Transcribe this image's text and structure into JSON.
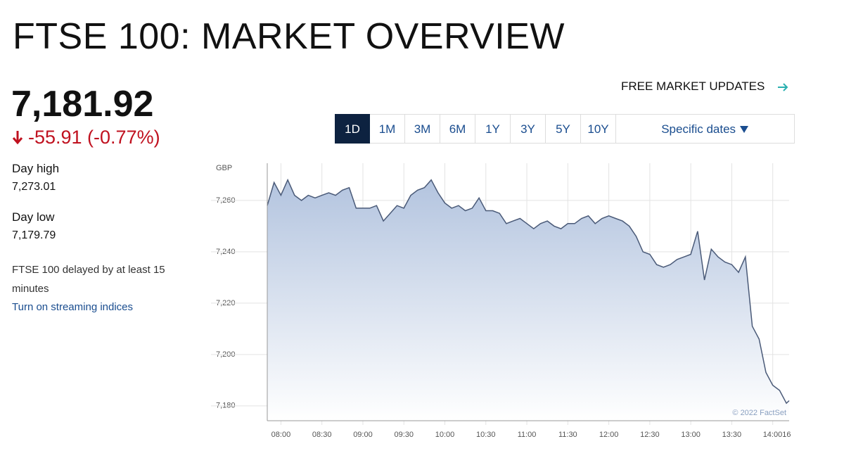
{
  "header": {
    "title": "FTSE 100: MARKET OVERVIEW",
    "price": "7,181.92",
    "change": "-55.91 (-0.77%)",
    "day_high_label": "Day high",
    "day_high": "7,273.01",
    "day_low_label": "Day low",
    "day_low": "7,179.79",
    "delay_note": "FTSE 100 delayed by at least 15 minutes",
    "streaming_link": "Turn on streaming indices",
    "updates_link": "FREE MARKET UPDATES"
  },
  "ranges": {
    "options": [
      "1D",
      "1M",
      "3M",
      "6M",
      "1Y",
      "3Y",
      "5Y",
      "10Y"
    ],
    "selected": "1D",
    "specific_dates": "Specific dates"
  },
  "chart_data": {
    "type": "line",
    "y_unit": "GBP",
    "credit": "© 2022 FactSet",
    "color": "#4a5a78",
    "x": [
      "07:50",
      "07:55",
      "08:00",
      "08:05",
      "08:10",
      "08:15",
      "08:20",
      "08:25",
      "08:30",
      "08:35",
      "08:40",
      "08:45",
      "08:50",
      "08:55",
      "09:00",
      "09:05",
      "09:10",
      "09:15",
      "09:20",
      "09:25",
      "09:30",
      "09:35",
      "09:40",
      "09:45",
      "09:50",
      "09:55",
      "10:00",
      "10:05",
      "10:10",
      "10:15",
      "10:20",
      "10:25",
      "10:30",
      "10:35",
      "10:40",
      "10:45",
      "10:50",
      "10:55",
      "11:00",
      "11:05",
      "11:10",
      "11:15",
      "11:20",
      "11:25",
      "11:30",
      "11:35",
      "11:40",
      "11:45",
      "11:50",
      "11:55",
      "12:00",
      "12:05",
      "12:10",
      "12:15",
      "12:20",
      "12:25",
      "12:30",
      "12:35",
      "12:40",
      "12:45",
      "12:50",
      "12:55",
      "13:00",
      "13:05",
      "13:10",
      "13:15",
      "13:20",
      "13:25",
      "13:30",
      "13:35",
      "13:40",
      "13:45",
      "13:50",
      "13:55",
      "14:00",
      "14:05",
      "14:10",
      "14:12"
    ],
    "values": [
      7258,
      7267,
      7262,
      7268,
      7262,
      7260,
      7262,
      7261,
      7262,
      7263,
      7262,
      7264,
      7265,
      7257,
      7257,
      7257,
      7258,
      7252,
      7255,
      7258,
      7257,
      7262,
      7264,
      7265,
      7268,
      7263,
      7259,
      7257,
      7258,
      7256,
      7257,
      7261,
      7256,
      7256,
      7255,
      7251,
      7252,
      7253,
      7251,
      7249,
      7251,
      7252,
      7250,
      7249,
      7251,
      7251,
      7253,
      7254,
      7251,
      7253,
      7254,
      7253,
      7252,
      7250,
      7246,
      7240,
      7239,
      7235,
      7234,
      7235,
      7237,
      7238,
      7239,
      7248,
      7229,
      7241,
      7238,
      7236,
      7235,
      7232,
      7238,
      7211,
      7206,
      7193,
      7188,
      7186,
      7181,
      7182
    ],
    "xlim": [
      "07:50",
      "14:12"
    ],
    "xticks": [
      "08:00",
      "08:30",
      "09:00",
      "09:30",
      "10:00",
      "10:30",
      "11:00",
      "11:30",
      "12:00",
      "12:30",
      "13:00",
      "13:30",
      {
        "value": "14:00",
        "label": "14:0016"
      }
    ],
    "ylim": [
      7174.2,
      7274.5
    ],
    "yticks": [
      {
        "value": 7180,
        "label": "7,180"
      },
      {
        "value": 7200,
        "label": "7,200"
      },
      {
        "value": 7220,
        "label": "7,220"
      },
      {
        "value": 7240,
        "label": "7,240"
      },
      {
        "value": 7260,
        "label": "7,260"
      }
    ],
    "grid": true
  }
}
